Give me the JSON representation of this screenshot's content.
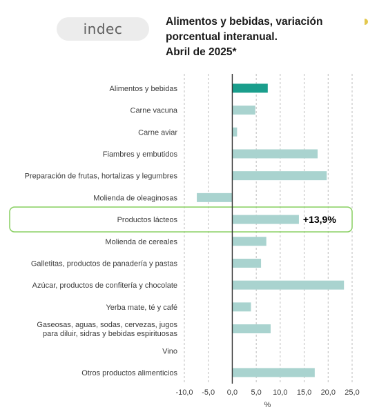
{
  "header": {
    "logo_text": "indec",
    "title_lines": [
      "Alimentos y bebidas, variación",
      "porcentual interanual.",
      "Abril de 2025*"
    ]
  },
  "chart_data": {
    "type": "bar",
    "orientation": "horizontal",
    "title": "Alimentos y bebidas, variación porcentual interanual. Abril de 2025*",
    "categories": [
      [
        "Alimentos y bebidas"
      ],
      [
        "Carne vacuna"
      ],
      [
        "Carne aviar"
      ],
      [
        "Fiambres y embutidos"
      ],
      [
        "Preparación de frutas, hortalizas y legumbres"
      ],
      [
        "Molienda de oleaginosas"
      ],
      [
        "Productos lácteos"
      ],
      [
        "Molienda de cereales"
      ],
      [
        "Galletitas, productos de panadería y pastas"
      ],
      [
        "Azúcar, productos de confitería y chocolate"
      ],
      [
        "Yerba mate, té y café"
      ],
      [
        "Gaseosas, aguas, sodas, cervezas, jugos",
        "para diluir, sidras y bebidas espirituosas"
      ],
      [
        "Vino"
      ],
      [
        "Otros productos alimenticios"
      ]
    ],
    "values": [
      7.4,
      4.8,
      1.0,
      17.8,
      19.7,
      -7.4,
      13.9,
      7.1,
      6.0,
      23.3,
      3.9,
      8.0,
      0,
      17.2
    ],
    "highlight_color": "#1a9e8c",
    "bar_color": "#a9d3cf",
    "xlabel": "%",
    "xlim": [
      -10,
      25
    ],
    "xticks": [
      "-10,0",
      "-5,0",
      "0,0",
      "5,0",
      "10,0",
      "15,0",
      "20,0",
      "25,0"
    ],
    "xtick_values": [
      -10,
      -5,
      0,
      5,
      10,
      15,
      20,
      25
    ],
    "grid": true,
    "annotation": {
      "category_index": 6,
      "text": "+13,9%",
      "box_color": "#8fd26a"
    }
  }
}
